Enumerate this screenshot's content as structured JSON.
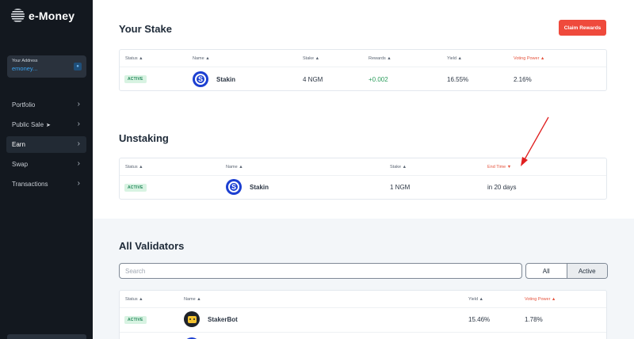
{
  "brand": {
    "name": "e-Money"
  },
  "sidebar": {
    "address_label": "Your Address",
    "address_value": "emoney...",
    "items": [
      {
        "label": "Portfolio"
      },
      {
        "label": "Public Sale",
        "icon": "rocket-icon"
      },
      {
        "label": "Earn",
        "active": true
      },
      {
        "label": "Swap"
      },
      {
        "label": "Transactions"
      }
    ]
  },
  "stake": {
    "title": "Your Stake",
    "claim_label": "Claim Rewards",
    "headers": {
      "status": "Status ▲",
      "name": "Name ▲",
      "stake": "Stake ▲",
      "rewards": "Rewards ▲",
      "yield": "Yield ▲",
      "voting_power": "Voting Power ▲"
    },
    "row": {
      "status": "ACTIVE",
      "name": "Stakin",
      "stake": "4 NGM",
      "rewards": "+0.002",
      "yield": "16.55%",
      "voting_power": "2.16%"
    }
  },
  "unstaking": {
    "title": "Unstaking",
    "headers": {
      "status": "Status ▲",
      "name": "Name ▲",
      "stake": "Stake ▲",
      "end_time": "End Time ▼"
    },
    "row": {
      "status": "ACTIVE",
      "name": "Stakin",
      "stake": "1 NGM",
      "end_time": "in 20 days"
    }
  },
  "validators": {
    "title": "All Validators",
    "search_placeholder": "Search",
    "filter_all": "All",
    "filter_active": "Active",
    "headers": {
      "status": "Status ▲",
      "name": "Name ▲",
      "yield": "Yield ▲",
      "voting_power": "Voting Power ▲"
    },
    "rows": [
      {
        "status": "ACTIVE",
        "name": "StakerBot",
        "yield": "15.46%",
        "voting_power": "1.78%"
      }
    ]
  },
  "colors": {
    "accent": "#ef4a3c",
    "active_badge": "#d8f3e2",
    "annotation_arrow": "#e02020"
  }
}
